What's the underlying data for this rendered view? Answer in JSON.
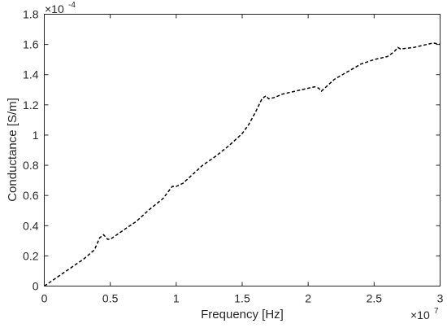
{
  "chart_data": {
    "type": "line",
    "title": "",
    "xlabel": "Frequency [Hz]",
    "ylabel": "Conductance [S/m]",
    "x_multiplier": {
      "base": "×10",
      "exponent": "7"
    },
    "y_multiplier": {
      "base": "×10",
      "exponent": "-4"
    },
    "xlim": [
      0,
      3
    ],
    "ylim": [
      0,
      1.8
    ],
    "xticks": [
      0,
      0.5,
      1,
      1.5,
      2,
      2.5,
      3
    ],
    "xtick_labels": [
      "0",
      "0.5",
      "1",
      "1.5",
      "2",
      "2.5",
      "3"
    ],
    "yticks": [
      0,
      0.2,
      0.4,
      0.6,
      0.8,
      1,
      1.2,
      1.4,
      1.6,
      1.8
    ],
    "ytick_labels": [
      "0",
      "0.2",
      "0.4",
      "0.6",
      "0.8",
      "1",
      "1.2",
      "1.4",
      "1.6",
      "1.8"
    ],
    "grid": false,
    "legend": "none",
    "series": [
      {
        "color": "#000000",
        "line_style": "dashed",
        "x": [
          0,
          0.1,
          0.2,
          0.3,
          0.38,
          0.42,
          0.45,
          0.48,
          0.5,
          0.6,
          0.7,
          0.8,
          0.9,
          0.97,
          1.0,
          1.05,
          1.1,
          1.2,
          1.3,
          1.4,
          1.5,
          1.55,
          1.6,
          1.65,
          1.68,
          1.7,
          1.75,
          1.8,
          1.9,
          2.0,
          2.05,
          2.08,
          2.1,
          2.15,
          2.2,
          2.3,
          2.4,
          2.5,
          2.6,
          2.65,
          2.68,
          2.7,
          2.8,
          2.9,
          2.95,
          3.0
        ],
        "y": [
          0,
          0.06,
          0.12,
          0.18,
          0.24,
          0.32,
          0.34,
          0.31,
          0.31,
          0.37,
          0.43,
          0.51,
          0.58,
          0.66,
          0.66,
          0.68,
          0.72,
          0.8,
          0.86,
          0.93,
          1.01,
          1.07,
          1.15,
          1.24,
          1.26,
          1.24,
          1.25,
          1.27,
          1.29,
          1.31,
          1.32,
          1.31,
          1.29,
          1.33,
          1.37,
          1.42,
          1.47,
          1.5,
          1.52,
          1.55,
          1.58,
          1.57,
          1.58,
          1.6,
          1.61,
          1.6
        ]
      }
    ]
  }
}
